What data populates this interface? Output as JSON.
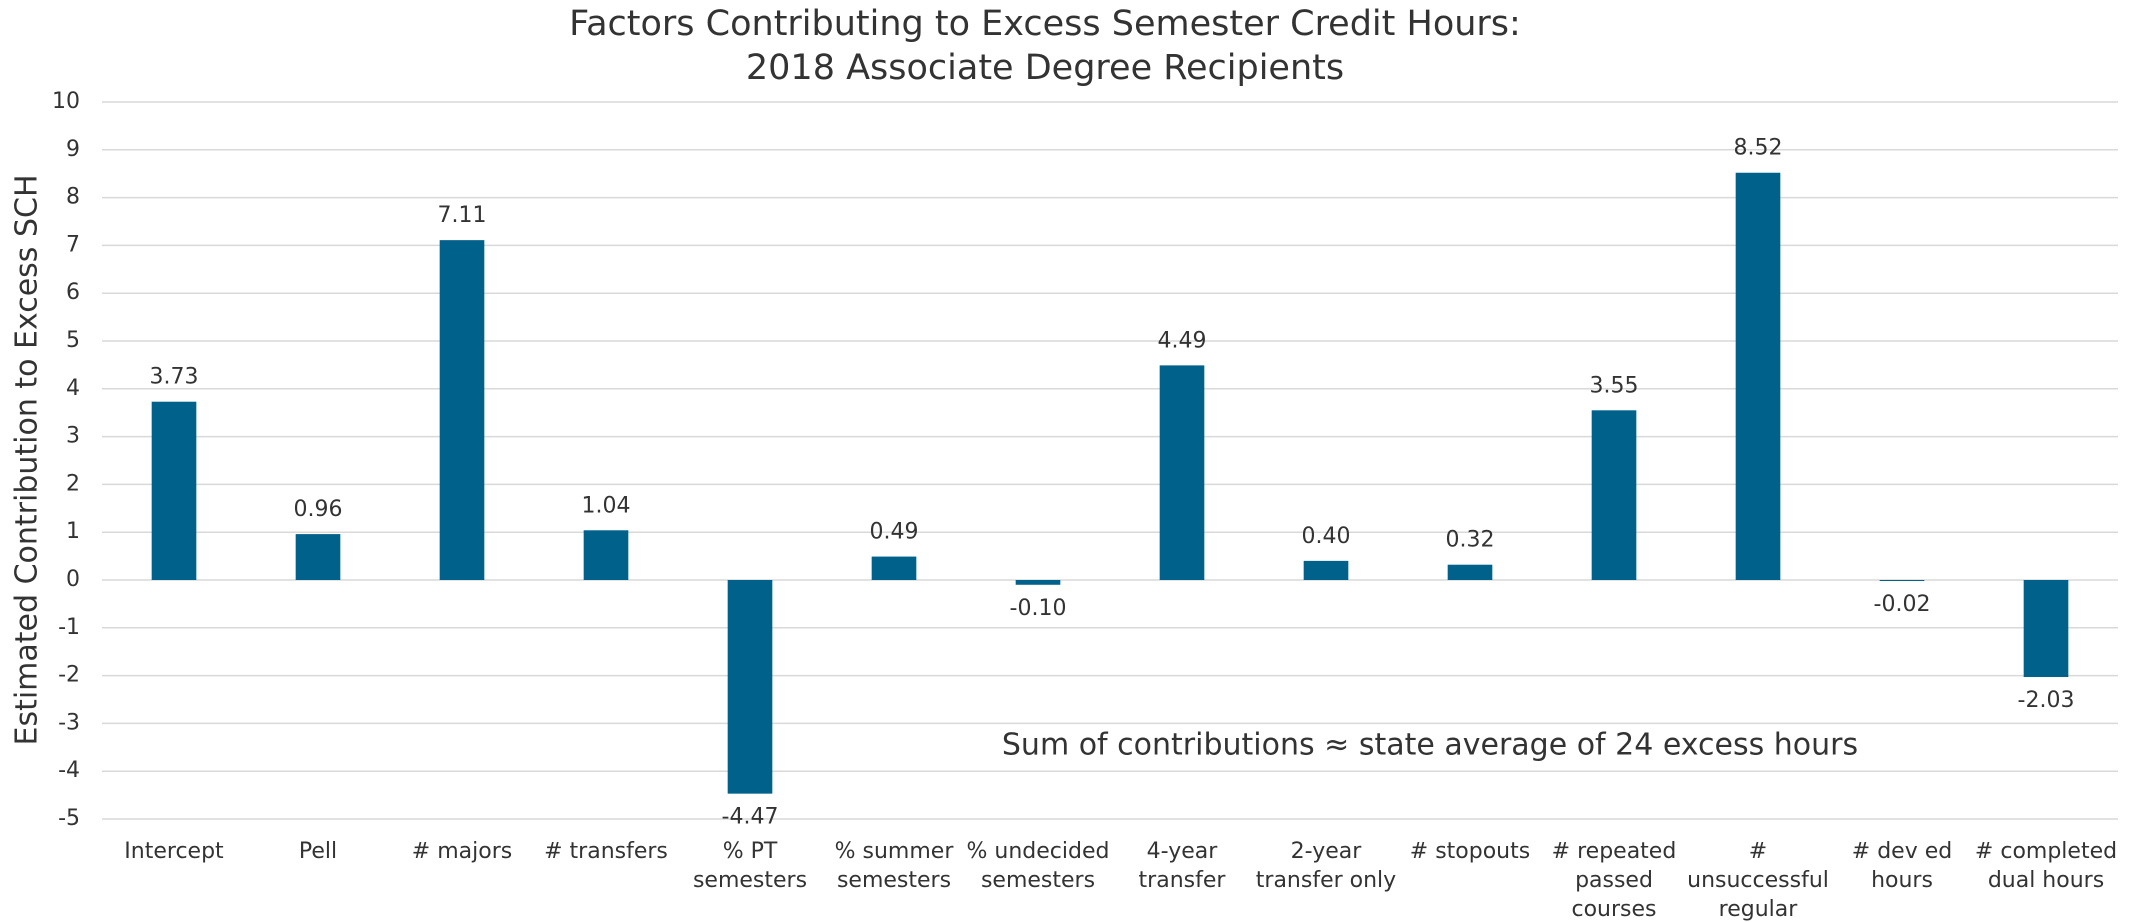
{
  "chart_data": {
    "type": "bar",
    "title": "Factors Contributing to Excess Semester Credit Hours:",
    "subtitle": "2018 Associate Degree Recipients",
    "y_label": "Estimated Contribution to Excess SCH",
    "annotation": "Sum of contributions ≈ state average of 24 excess hours",
    "categories": [
      "Intercept",
      "Pell",
      "# majors",
      "# transfers",
      "% PT semesters",
      "% summer semesters",
      "% undecided semesters",
      "4-year transfer",
      "2-year transfer only",
      "# stopouts",
      "# repeated passed courses",
      "# unsuccessful regular hours",
      "# dev ed hours",
      "# completed dual hours"
    ],
    "values": [
      3.73,
      0.96,
      7.11,
      1.04,
      -4.47,
      0.49,
      -0.1,
      4.49,
      0.4,
      0.32,
      3.55,
      8.52,
      -0.02,
      -2.03
    ],
    "value_labels": [
      "3.73",
      "0.96",
      "7.11",
      "1.04",
      "-4.47",
      "0.49",
      "-0.10",
      "4.49",
      "0.40",
      "0.32",
      "3.55",
      "8.52",
      "-0.02",
      "-2.03"
    ],
    "color": "#00618a",
    "ylim": [
      -5,
      10
    ],
    "yticks": [
      -5,
      -4,
      -3,
      -2,
      -1,
      0,
      1,
      2,
      3,
      4,
      5,
      6,
      7,
      8,
      9,
      10
    ],
    "grid": true
  }
}
